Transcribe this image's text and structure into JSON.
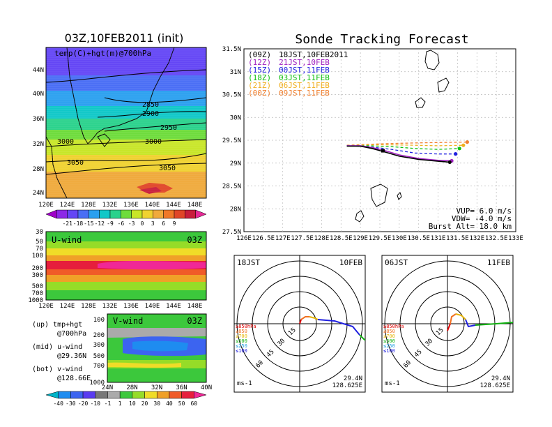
{
  "map_panel": {
    "title": "03Z,10FEB2011 (init)",
    "field_label": "temp(C)+hgt(m)@700hPa",
    "lat_ticks": [
      "44N",
      "40N",
      "36N",
      "32N",
      "28N",
      "24N"
    ],
    "lon_ticks": [
      "120E",
      "124E",
      "128E",
      "132E",
      "136E",
      "140E",
      "144E",
      "148E"
    ],
    "contours": [
      "2850",
      "2900",
      "2950",
      "3000",
      "3000",
      "3050",
      "3050"
    ],
    "colorbar_ticks": [
      "-21",
      "-18",
      "-15",
      "-12",
      "-9",
      "-6",
      "-3",
      "0",
      "3",
      "6",
      "9"
    ]
  },
  "uwind_panel": {
    "label": "U-wind",
    "time": "03Z",
    "y_ticks": [
      "30",
      "50",
      "70",
      "100",
      "200",
      "300",
      "500",
      "700",
      "1000"
    ],
    "x_ticks": [
      "120E",
      "124E",
      "128E",
      "132E",
      "136E",
      "140E",
      "144E",
      "148E"
    ]
  },
  "vwind_panel": {
    "label": "V-wind",
    "time": "03Z",
    "y_ticks": [
      "100",
      "200",
      "300",
      "500",
      "700",
      "1000"
    ],
    "x_ticks": [
      "24N",
      "28N",
      "32N",
      "36N",
      "40N"
    ],
    "colorbar_ticks": [
      "-40",
      "-30",
      "-20",
      "-10",
      "-1",
      "1",
      "10",
      "20",
      "30",
      "40",
      "50",
      "60"
    ]
  },
  "legend_notes": [
    {
      "line1": "(up) tmp+hgt",
      "line2": "@700hPa"
    },
    {
      "line1": "(mid) u-wind",
      "line2": "@29.36N"
    },
    {
      "line1": "(bot) v-wind",
      "line2": "@128.66E"
    }
  ],
  "tracking": {
    "title": "Sonde Tracking Forecast",
    "entries": [
      {
        "code": "(09Z)",
        "label": "18JST,10FEB2011",
        "color": "#000000"
      },
      {
        "code": "(12Z)",
        "label": "21JST,10FEB",
        "color": "#a020c0"
      },
      {
        "code": "(15Z)",
        "label": "00JST,11FEB",
        "color": "#2020e0"
      },
      {
        "code": "(18Z)",
        "label": "03JST,11FEB",
        "color": "#10c010"
      },
      {
        "code": "(21Z)",
        "label": "06JST,11FEB",
        "color": "#f0b020"
      },
      {
        "code": "(00Z)",
        "label": "09JST,11FEB",
        "color": "#f08030"
      }
    ],
    "params": [
      "VUP= 6.0 m/s",
      "VDW= -4.0 m/s",
      "Burst Alt= 18.0 km"
    ]
  },
  "chart_data": {
    "type": "line",
    "title": "Sonde Tracking Forecast",
    "xlabel": "",
    "ylabel": "",
    "x_ticks": [
      "126E",
      "126.5E",
      "127E",
      "127.5E",
      "128E",
      "128.5E",
      "129E",
      "129.5E",
      "130E",
      "130.5E",
      "131E",
      "131.5E",
      "132E",
      "132.5E",
      "133E"
    ],
    "y_ticks": [
      "31.5N",
      "31N",
      "30.5N",
      "30N",
      "29.5N",
      "29N",
      "28.5N",
      "28N",
      "27.5N"
    ],
    "xlim": [
      126,
      133
    ],
    "ylim": [
      27.5,
      31.5
    ],
    "grid": true,
    "series": [
      {
        "name": "(09Z) 18JST,10FEB2011",
        "color": "#000000",
        "style": "solid",
        "points": [
          [
            128.65,
            29.37
          ],
          [
            129.0,
            29.37
          ],
          [
            129.3,
            29.32
          ],
          [
            129.6,
            29.25
          ],
          [
            130.0,
            29.15
          ],
          [
            130.5,
            29.08
          ],
          [
            131.0,
            29.04
          ],
          [
            131.3,
            29.02
          ]
        ]
      },
      {
        "name": "(12Z) 21JST,10FEB",
        "color": "#a020c0",
        "style": "solid",
        "points": [
          [
            128.65,
            29.38
          ],
          [
            129.0,
            29.38
          ],
          [
            129.3,
            29.34
          ],
          [
            129.6,
            29.28
          ],
          [
            130.0,
            29.18
          ],
          [
            130.5,
            29.1
          ],
          [
            131.0,
            29.06
          ],
          [
            131.35,
            29.05
          ]
        ]
      },
      {
        "name": "(15Z) 00JST,11FEB",
        "color": "#2020e0",
        "style": "dashed",
        "points": [
          [
            128.65,
            29.38
          ],
          [
            129.2,
            29.36
          ],
          [
            129.8,
            29.3
          ],
          [
            130.4,
            29.22
          ],
          [
            131.0,
            29.2
          ],
          [
            131.45,
            29.2
          ]
        ]
      },
      {
        "name": "(18Z) 03JST,11FEB",
        "color": "#10c010",
        "style": "dashed",
        "points": [
          [
            128.65,
            29.38
          ],
          [
            129.2,
            29.38
          ],
          [
            129.8,
            29.36
          ],
          [
            130.4,
            29.32
          ],
          [
            131.0,
            29.3
          ],
          [
            131.55,
            29.32
          ]
        ]
      },
      {
        "name": "(21Z) 06JST,11FEB",
        "color": "#f0b020",
        "style": "dashed",
        "points": [
          [
            128.65,
            29.38
          ],
          [
            129.2,
            29.4
          ],
          [
            129.8,
            29.4
          ],
          [
            130.4,
            29.39
          ],
          [
            131.0,
            29.38
          ],
          [
            131.65,
            29.39
          ]
        ]
      },
      {
        "name": "(00Z) 09JST,11FEB",
        "color": "#f08030",
        "style": "dashed",
        "points": [
          [
            128.65,
            29.39
          ],
          [
            129.2,
            29.41
          ],
          [
            129.8,
            29.43
          ],
          [
            130.4,
            29.44
          ],
          [
            131.0,
            29.45
          ],
          [
            131.75,
            29.46
          ]
        ]
      }
    ]
  },
  "hodo_left": {
    "time": "18JST",
    "date": "10FEB",
    "lat": "29.4N",
    "lon": "128.625E",
    "unit": "ms-1",
    "ring_labels": [
      "15",
      "30",
      "45",
      "60"
    ],
    "levels": [
      "≥850hPa",
      "≤850",
      "≤700",
      "≤500",
      "≤250",
      "≤100"
    ]
  },
  "hodo_right": {
    "time": "06JST",
    "date": "11FEB",
    "lat": "29.4N",
    "lon": "128.625E",
    "unit": "ms-1",
    "ring_labels": [
      "15",
      "30",
      "45",
      "60"
    ],
    "levels": [
      "≥850hPa",
      "≤850",
      "≤700",
      "≤500",
      "≤250",
      "≤100"
    ]
  },
  "colors": {
    "temp_scale": [
      "#a000c8",
      "#8c28e6",
      "#6446f5",
      "#4a6ef5",
      "#2aa0f0",
      "#10c8c8",
      "#2ad28c",
      "#6edc3c",
      "#c8e628",
      "#f0d230",
      "#f0aa3c",
      "#f07828",
      "#e04628",
      "#c81e3c",
      "#e62896"
    ],
    "wind_scale": [
      "#00b4c8",
      "#1e8cf0",
      "#3c64f0",
      "#5a3cf0",
      "#787878",
      "#aaaaaa",
      "#3cc83c",
      "#96dc28",
      "#f0dc28",
      "#f0a028",
      "#f05a28",
      "#e61e3c",
      "#f02896"
    ]
  }
}
